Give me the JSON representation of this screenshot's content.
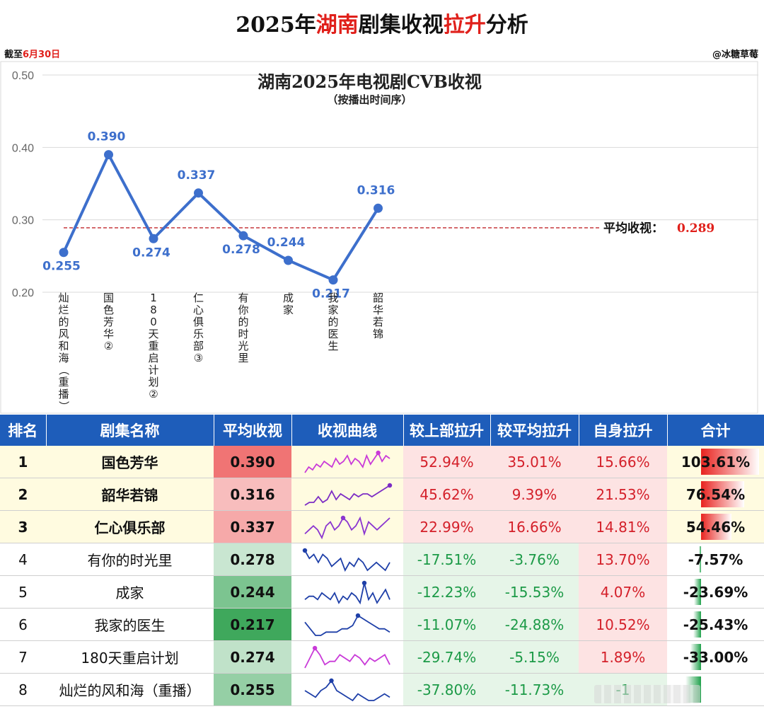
{
  "header": {
    "title_prefix": "2025年",
    "title_red1": "湖南",
    "title_mid": "剧集收视",
    "title_red2": "拉升",
    "title_suffix": "分析",
    "date_prefix": "截至",
    "date_value": "6月30日",
    "author": "@冰糖草莓"
  },
  "chart_data": {
    "type": "line",
    "title": "湖南2025年电视剧CVB收视",
    "subtitle": "（按播出时间序）",
    "categories": [
      "灿烂的风和海（重播）",
      "国色芳华②",
      "180天重启计划②",
      "仁心俱乐部③",
      "有你的时光里",
      "成家",
      "我家的医生",
      "韶华若锦"
    ],
    "values": [
      0.255,
      0.39,
      0.274,
      0.337,
      0.278,
      0.244,
      0.217,
      0.316
    ],
    "value_labels": [
      "0.255",
      "0.390",
      "0.274",
      "0.337",
      "0.278",
      "0.244",
      "0.217",
      "0.316"
    ],
    "yticks": [
      "0.20",
      "0.30",
      "0.40",
      "0.50"
    ],
    "ylim": [
      0.2,
      0.5
    ],
    "average": 0.289,
    "average_label": "平均收视：",
    "average_value": "0.289",
    "line_color": "#3d6fcc",
    "avg_line_color": "#c0282d",
    "grid": true
  },
  "table": {
    "headers": [
      "排名",
      "剧集名称",
      "平均收视",
      "收视曲线",
      "较上部拉升",
      "较平均拉升",
      "自身拉升",
      "合计"
    ],
    "rows": [
      {
        "rank": "1",
        "name": "国色芳华",
        "avg": "0.390",
        "prev": "52.94%",
        "vs_avg": "35.01%",
        "self": "15.66%",
        "total": "103.61%",
        "total_value": 103.61,
        "top": true,
        "spark": [
          3,
          5,
          4,
          6,
          5,
          7,
          6,
          5,
          8,
          6,
          7,
          9,
          6,
          8,
          7,
          5,
          9,
          6,
          8,
          10,
          7,
          9,
          8
        ],
        "peak_color": "#c93ad8"
      },
      {
        "rank": "2",
        "name": "韶华若锦",
        "avg": "0.316",
        "prev": "45.62%",
        "vs_avg": "9.39%",
        "self": "21.53%",
        "total": "76.54%",
        "total_value": 76.54,
        "top": true,
        "spark": [
          2,
          3,
          3,
          5,
          3,
          4,
          7,
          4,
          6,
          5,
          4,
          6,
          5,
          6,
          6,
          5,
          6,
          7,
          8,
          9
        ],
        "peak_color": "#7c2cc4"
      },
      {
        "rank": "3",
        "name": "仁心俱乐部",
        "avg": "0.337",
        "prev": "22.99%",
        "vs_avg": "16.66%",
        "self": "14.81%",
        "total": "54.46%",
        "total_value": 54.46,
        "top": true,
        "spark": [
          4,
          5,
          6,
          5,
          3,
          6,
          7,
          5,
          6,
          8,
          7,
          5,
          6,
          8,
          4,
          7,
          6,
          5,
          6,
          7,
          8
        ],
        "peak_color": "#8a35d0"
      },
      {
        "rank": "4",
        "name": "有你的时光里",
        "avg": "0.278",
        "prev": "-17.51%",
        "vs_avg": "-3.76%",
        "self": "13.70%",
        "total": "-7.57%",
        "total_value": -7.57,
        "top": false,
        "spark": [
          9,
          7,
          8,
          6,
          8,
          7,
          5,
          6,
          7,
          4,
          6,
          5,
          7,
          6,
          4,
          5,
          6,
          5,
          4,
          6
        ],
        "peak_color": "#1e3fa8"
      },
      {
        "rank": "5",
        "name": "成家",
        "avg": "0.244",
        "prev": "-12.23%",
        "vs_avg": "-15.53%",
        "self": "4.07%",
        "total": "-23.69%",
        "total_value": -23.69,
        "top": false,
        "spark": [
          4,
          5,
          5,
          4,
          6,
          5,
          4,
          6,
          3,
          5,
          4,
          6,
          5,
          3,
          9,
          4,
          6,
          3,
          5,
          7,
          4
        ],
        "peak_color": "#1e3fa8"
      },
      {
        "rank": "6",
        "name": "我家的医生",
        "avg": "0.217",
        "prev": "-11.07%",
        "vs_avg": "-24.88%",
        "self": "10.52%",
        "total": "-25.43%",
        "total_value": -25.43,
        "top": false,
        "spark": [
          7,
          5,
          3,
          3,
          4,
          4,
          4,
          5,
          5,
          6,
          9,
          8,
          7,
          6,
          5,
          5,
          4
        ],
        "peak_color": "#1e3fa8"
      },
      {
        "rank": "7",
        "name": "180天重启计划",
        "avg": "0.274",
        "prev": "-29.74%",
        "vs_avg": "-5.15%",
        "self": "1.89%",
        "total": "-33.00%",
        "total_value": -33.0,
        "top": false,
        "spark": [
          2,
          5,
          8,
          6,
          3,
          4,
          4,
          6,
          5,
          4,
          6,
          5,
          3,
          5,
          4,
          5,
          6,
          3
        ],
        "peak_color": "#c93ad8"
      },
      {
        "rank": "8",
        "name": "灿烂的风和海（重播）",
        "avg": "0.255",
        "prev": "-37.80%",
        "vs_avg": "-11.73%",
        "self": "-1",
        "total": "",
        "total_value": -50.0,
        "top": false,
        "spark": [
          6,
          5,
          4,
          6,
          7,
          9,
          6,
          5,
          4,
          3,
          5,
          4,
          3,
          3,
          4,
          5,
          4
        ],
        "peak_color": "#1e3fa8"
      }
    ],
    "colors": {
      "header_bg": "#1e5dba",
      "pos_text": "#d4202a",
      "neg_text": "#1c9a47",
      "pos_bg": "#fde3e3",
      "neg_bg": "#e6f5e8",
      "avg_high": "#f07474",
      "avg_low": "#3fa85c"
    }
  }
}
